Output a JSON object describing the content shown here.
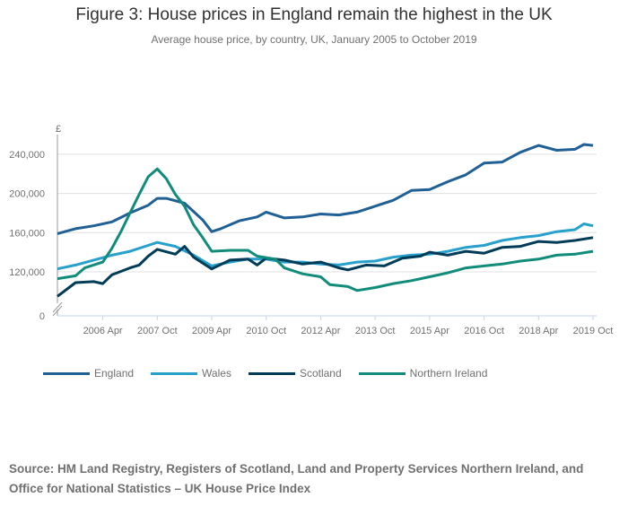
{
  "chart_data": {
    "type": "line",
    "title": "Figure 3: House prices in England remain the highest in the UK",
    "subtitle": "Average house price, by country, UK, January 2005 to October 2019",
    "ylabel": "£",
    "xlabel": "",
    "ylim": [
      0,
      260000
    ],
    "y_axis_break": true,
    "yticks": [
      0,
      120000,
      160000,
      200000,
      240000
    ],
    "ytick_labels": [
      "0",
      "120,000",
      "160,000",
      "200,000",
      "240,000"
    ],
    "xticks": [
      "2006-04",
      "2007-10",
      "2009-04",
      "2010-10",
      "2012-04",
      "2013-10",
      "2015-04",
      "2016-10",
      "2018-04",
      "2019-10"
    ],
    "xtick_labels": [
      "2006 Apr",
      "2007 Oct",
      "2009 Apr",
      "2010 Oct",
      "2012 Apr",
      "2013 Oct",
      "2015 Apr",
      "2016 Oct",
      "2018 Apr",
      "2019 Oct"
    ],
    "xlim": [
      "2005-01",
      "2019-10"
    ],
    "grid": "horizontal",
    "legend_position": "bottom",
    "series": [
      {
        "name": "England",
        "color": "#206095",
        "points": [
          [
            "2005-01",
            159000
          ],
          [
            "2005-07",
            164000
          ],
          [
            "2006-01",
            167000
          ],
          [
            "2006-07",
            171000
          ],
          [
            "2007-01",
            180000
          ],
          [
            "2007-07",
            188000
          ],
          [
            "2007-10",
            195000
          ],
          [
            "2008-01",
            195000
          ],
          [
            "2008-07",
            190000
          ],
          [
            "2009-01",
            173000
          ],
          [
            "2009-04",
            161000
          ],
          [
            "2009-07",
            164000
          ],
          [
            "2010-01",
            172000
          ],
          [
            "2010-07",
            176000
          ],
          [
            "2010-10",
            181000
          ],
          [
            "2011-04",
            175000
          ],
          [
            "2011-10",
            176000
          ],
          [
            "2012-04",
            179000
          ],
          [
            "2012-10",
            178000
          ],
          [
            "2013-04",
            181000
          ],
          [
            "2013-10",
            187000
          ],
          [
            "2014-04",
            193000
          ],
          [
            "2014-10",
            203000
          ],
          [
            "2015-04",
            204000
          ],
          [
            "2015-10",
            212000
          ],
          [
            "2016-04",
            219000
          ],
          [
            "2016-10",
            231000
          ],
          [
            "2017-04",
            232000
          ],
          [
            "2017-10",
            242000
          ],
          [
            "2018-04",
            249000
          ],
          [
            "2018-10",
            244000
          ],
          [
            "2019-04",
            245000
          ],
          [
            "2019-07",
            250000
          ],
          [
            "2019-10",
            249000
          ]
        ]
      },
      {
        "name": "Wales",
        "color": "#27a0cc",
        "points": [
          [
            "2005-01",
            123000
          ],
          [
            "2005-07",
            127000
          ],
          [
            "2006-01",
            132000
          ],
          [
            "2006-07",
            137000
          ],
          [
            "2007-01",
            141000
          ],
          [
            "2007-07",
            147000
          ],
          [
            "2007-10",
            150000
          ],
          [
            "2008-04",
            146000
          ],
          [
            "2008-10",
            137000
          ],
          [
            "2009-04",
            126000
          ],
          [
            "2009-10",
            130000
          ],
          [
            "2010-04",
            133000
          ],
          [
            "2010-10",
            133000
          ],
          [
            "2011-04",
            130000
          ],
          [
            "2011-10",
            130000
          ],
          [
            "2012-04",
            128000
          ],
          [
            "2012-10",
            127000
          ],
          [
            "2013-04",
            130000
          ],
          [
            "2013-10",
            131000
          ],
          [
            "2014-04",
            135000
          ],
          [
            "2014-10",
            137000
          ],
          [
            "2015-04",
            138000
          ],
          [
            "2015-10",
            141000
          ],
          [
            "2016-04",
            145000
          ],
          [
            "2016-10",
            147000
          ],
          [
            "2017-04",
            152000
          ],
          [
            "2017-10",
            155000
          ],
          [
            "2018-04",
            157000
          ],
          [
            "2018-10",
            161000
          ],
          [
            "2019-04",
            163000
          ],
          [
            "2019-07",
            169000
          ],
          [
            "2019-10",
            167000
          ]
        ]
      },
      {
        "name": "Scotland",
        "color": "#003c57",
        "points": [
          [
            "2005-01",
            95000
          ],
          [
            "2005-07",
            109000
          ],
          [
            "2006-01",
            110000
          ],
          [
            "2006-04",
            108000
          ],
          [
            "2006-07",
            117000
          ],
          [
            "2007-01",
            124000
          ],
          [
            "2007-04",
            127000
          ],
          [
            "2007-07",
            136000
          ],
          [
            "2007-10",
            143000
          ],
          [
            "2008-04",
            138000
          ],
          [
            "2008-07",
            146000
          ],
          [
            "2008-10",
            135000
          ],
          [
            "2009-04",
            123000
          ],
          [
            "2009-10",
            132000
          ],
          [
            "2010-04",
            133000
          ],
          [
            "2010-07",
            127000
          ],
          [
            "2010-10",
            134000
          ],
          [
            "2011-04",
            132000
          ],
          [
            "2011-10",
            128000
          ],
          [
            "2012-04",
            130000
          ],
          [
            "2012-10",
            124000
          ],
          [
            "2013-01",
            122000
          ],
          [
            "2013-07",
            127000
          ],
          [
            "2014-01",
            126000
          ],
          [
            "2014-07",
            134000
          ],
          [
            "2015-01",
            136000
          ],
          [
            "2015-04",
            140000
          ],
          [
            "2015-10",
            137000
          ],
          [
            "2016-04",
            141000
          ],
          [
            "2016-10",
            139000
          ],
          [
            "2017-04",
            145000
          ],
          [
            "2017-10",
            146000
          ],
          [
            "2018-04",
            151000
          ],
          [
            "2018-10",
            150000
          ],
          [
            "2019-04",
            152000
          ],
          [
            "2019-10",
            155000
          ]
        ]
      },
      {
        "name": "Northern Ireland",
        "color": "#118c7b",
        "points": [
          [
            "2005-01",
            113000
          ],
          [
            "2005-07",
            116000
          ],
          [
            "2005-10",
            124000
          ],
          [
            "2006-04",
            130000
          ],
          [
            "2006-07",
            144000
          ],
          [
            "2006-10",
            161000
          ],
          [
            "2007-01",
            180000
          ],
          [
            "2007-04",
            199000
          ],
          [
            "2007-07",
            217000
          ],
          [
            "2007-10",
            225000
          ],
          [
            "2008-01",
            215000
          ],
          [
            "2008-04",
            199000
          ],
          [
            "2008-07",
            187000
          ],
          [
            "2008-10",
            168000
          ],
          [
            "2009-01",
            155000
          ],
          [
            "2009-04",
            141000
          ],
          [
            "2009-10",
            142000
          ],
          [
            "2010-04",
            142000
          ],
          [
            "2010-07",
            136000
          ],
          [
            "2011-01",
            133000
          ],
          [
            "2011-04",
            124000
          ],
          [
            "2011-10",
            118000
          ],
          [
            "2012-04",
            115000
          ],
          [
            "2012-07",
            107000
          ],
          [
            "2013-01",
            105000
          ],
          [
            "2013-04",
            101000
          ],
          [
            "2013-10",
            104000
          ],
          [
            "2014-04",
            108000
          ],
          [
            "2014-10",
            111000
          ],
          [
            "2015-04",
            115000
          ],
          [
            "2015-10",
            119000
          ],
          [
            "2016-04",
            124000
          ],
          [
            "2016-10",
            126000
          ],
          [
            "2017-04",
            128000
          ],
          [
            "2017-10",
            131000
          ],
          [
            "2018-04",
            133000
          ],
          [
            "2018-10",
            137000
          ],
          [
            "2019-04",
            138000
          ],
          [
            "2019-10",
            141000
          ]
        ]
      }
    ]
  },
  "source": "Source: HM Land Registry, Registers of Scotland, Land and Property Services Northern Ireland, and Office for National Statistics – UK House Price Index"
}
